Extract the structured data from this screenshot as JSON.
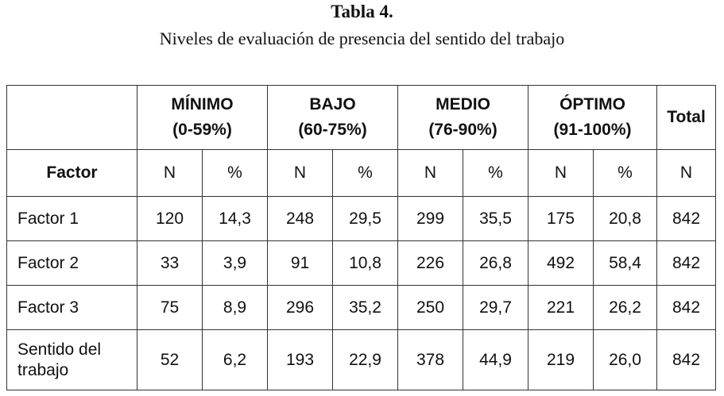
{
  "title": "Tabla 4.",
  "subtitle": "Niveles de evaluación de presencia del sentido del trabajo",
  "table": {
    "groups": [
      {
        "name": "MÍNIMO",
        "range": "(0-59%)"
      },
      {
        "name": "BAJO",
        "range": "(60-75%)"
      },
      {
        "name": "MEDIO",
        "range": "(76-90%)"
      },
      {
        "name": "ÓPTIMO",
        "range": "(91-100%)"
      }
    ],
    "total_label": "Total",
    "factor_label": "Factor",
    "n_label": "N",
    "pct_label": "%",
    "rows": [
      {
        "label": "Factor 1",
        "values": [
          "120",
          "14,3",
          "248",
          "29,5",
          "299",
          "35,5",
          "175",
          "20,8",
          "842"
        ]
      },
      {
        "label": "Factor 2",
        "values": [
          "33",
          "3,9",
          "91",
          "10,8",
          "226",
          "26,8",
          "492",
          "58,4",
          "842"
        ]
      },
      {
        "label": "Factor 3",
        "values": [
          "75",
          "8,9",
          "296",
          "35,2",
          "250",
          "29,7",
          "221",
          "26,2",
          "842"
        ]
      },
      {
        "label": "Sentido del trabajo",
        "values": [
          "52",
          "6,2",
          "193",
          "22,9",
          "378",
          "44,9",
          "219",
          "26,0",
          "842"
        ]
      }
    ]
  }
}
